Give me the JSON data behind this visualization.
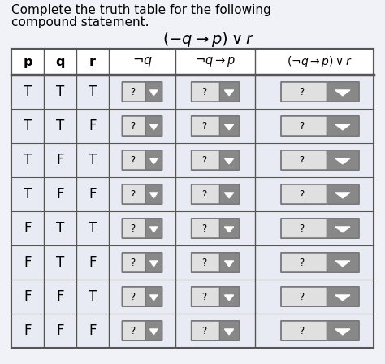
{
  "title_line1": "Complete the truth table for the following",
  "title_line2": "compound statement.",
  "rows": [
    [
      "T",
      "T",
      "T"
    ],
    [
      "T",
      "T",
      "F"
    ],
    [
      "T",
      "F",
      "T"
    ],
    [
      "T",
      "F",
      "F"
    ],
    [
      "F",
      "T",
      "T"
    ],
    [
      "F",
      "T",
      "F"
    ],
    [
      "F",
      "F",
      "T"
    ],
    [
      "F",
      "F",
      "F"
    ]
  ],
  "table_border_color": "#555555",
  "text_color": "#000000",
  "title_fontsize": 11.0,
  "formula_fontsize": 13,
  "header_fontsize": 10.5,
  "cell_fontsize": 11,
  "row_bg": "#e8eaf4",
  "header_bg": "#ffffff",
  "fig_bg": "#f0f2f8",
  "dropdown_light": "#e0e0e0",
  "dropdown_dark": "#888888",
  "dropdown_border": "#777777"
}
